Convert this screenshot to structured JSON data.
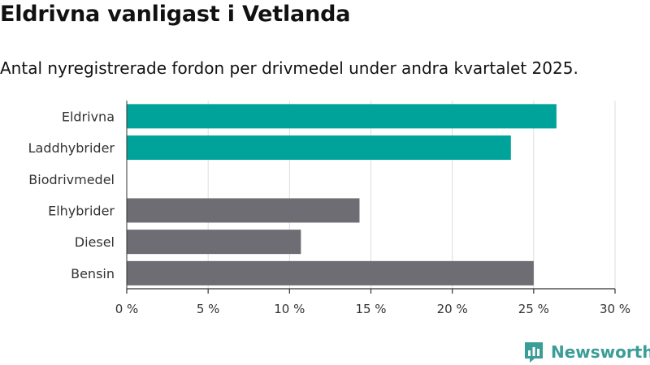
{
  "title": "Eldrivna vanligast i Vetlanda",
  "subtitle": "Antal nyregistrerade fordon per drivmedel under andra kvartalet 2025.",
  "brand": {
    "name": "Newsworthy",
    "color": "#3a9e96",
    "icon": "bar-chart-badge-icon"
  },
  "colors": {
    "highlight": "#00a39a",
    "default": "#6e6d73",
    "grid": "#dddddd"
  },
  "chart_data": {
    "type": "bar",
    "orientation": "horizontal",
    "title": "Eldrivna vanligast i Vetlanda",
    "subtitle": "Antal nyregistrerade fordon per drivmedel under andra kvartalet 2025.",
    "categories": [
      "Eldrivna",
      "Laddhybrider",
      "Biodrivmedel",
      "Elhybrider",
      "Diesel",
      "Bensin"
    ],
    "values": [
      26.4,
      23.6,
      0,
      14.3,
      10.7,
      25.0
    ],
    "highlighted": [
      true,
      true,
      false,
      false,
      false,
      false
    ],
    "xlim": [
      0,
      30
    ],
    "xticks": [
      0,
      5,
      10,
      15,
      20,
      25,
      30
    ],
    "xtick_labels": [
      "0 %",
      "5 %",
      "10 %",
      "15 %",
      "20 %",
      "25 %",
      "30 %"
    ],
    "xlabel": "",
    "ylabel": "",
    "grid": true
  }
}
